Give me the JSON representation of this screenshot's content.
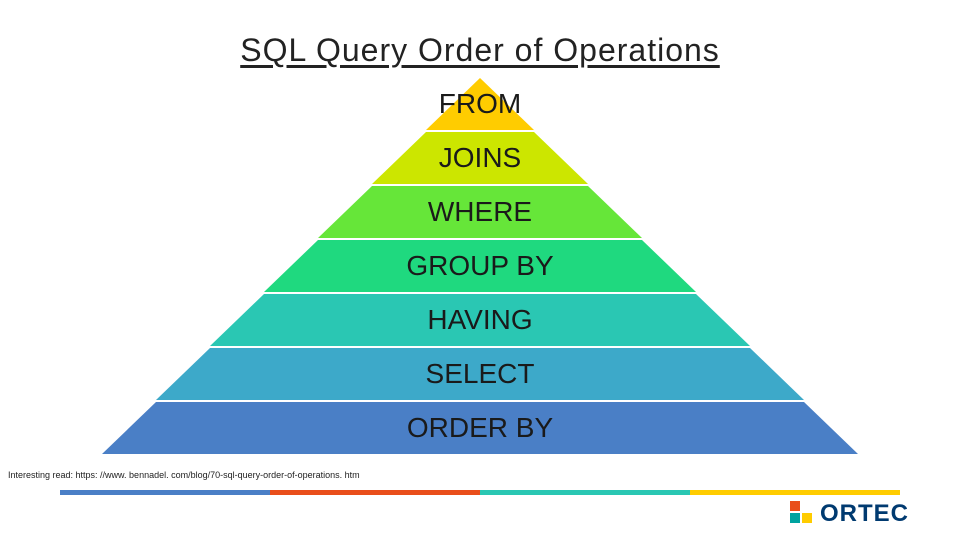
{
  "title": "SQL Query Order of Operations",
  "pyramid": {
    "type": "pyramid",
    "apex_y": 0,
    "base_half_width": 380,
    "total_height": 380,
    "layer_height": 54,
    "label_fontsize": 28,
    "label_color": "#1a1a1a",
    "gap_color": "#ffffff",
    "gap_height": 2,
    "layers": [
      {
        "label": "FROM",
        "color": "#ffcc00"
      },
      {
        "label": "JOINS",
        "color": "#cce600"
      },
      {
        "label": "WHERE",
        "color": "#66e639"
      },
      {
        "label": "GROUP BY",
        "color": "#1fd97f"
      },
      {
        "label": "HAVING",
        "color": "#2ac7b3"
      },
      {
        "label": "SELECT",
        "color": "#3da9c9"
      },
      {
        "label": "ORDER BY",
        "color": "#4a7fc6"
      }
    ]
  },
  "footnote": "Interesting read: https: //www. bennadel. com/blog/70-sql-query-order-of-operations. htm",
  "footer_bar_colors": [
    "#4a7fc6",
    "#e94e1b",
    "#2ac7b3",
    "#ffcc00"
  ],
  "logo": {
    "text": "ORTEC",
    "text_color": "#003a70",
    "mark_colors": [
      "#e94e1b",
      "#00a3a0",
      "#ffcc00"
    ]
  },
  "background_color": "#ffffff"
}
